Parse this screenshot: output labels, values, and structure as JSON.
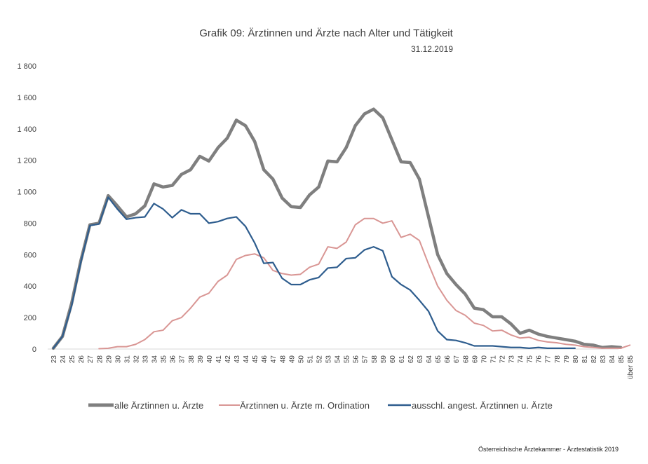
{
  "chart_data": {
    "type": "line",
    "title": "Grafik 09: Ärztinnen und Ärzte nach Alter und Tätigkeit",
    "subtitle": "31.12.2019",
    "source": "Österreichische Ärztekammer - Ärztestatistik 2019",
    "xlabel": "",
    "ylabel": "",
    "ylim": [
      0,
      1800
    ],
    "yticks": [
      0,
      200,
      400,
      600,
      800,
      1000,
      1200,
      1400,
      1600,
      1800
    ],
    "ytick_labels": [
      "0",
      "200",
      "400",
      "600",
      "800",
      "1 000",
      "1 200",
      "1 400",
      "1 600",
      "1 800"
    ],
    "grid": false,
    "legend_position": "bottom",
    "x": [
      "23",
      "24",
      "25",
      "26",
      "27",
      "28",
      "29",
      "30",
      "31",
      "32",
      "33",
      "34",
      "35",
      "36",
      "37",
      "38",
      "39",
      "40",
      "41",
      "42",
      "43",
      "44",
      "45",
      "46",
      "47",
      "48",
      "49",
      "50",
      "51",
      "52",
      "53",
      "54",
      "55",
      "56",
      "57",
      "58",
      "59",
      "60",
      "61",
      "62",
      "63",
      "64",
      "65",
      "66",
      "67",
      "68",
      "69",
      "70",
      "71",
      "72",
      "73",
      "74",
      "75",
      "76",
      "77",
      "78",
      "79",
      "80",
      "81",
      "82",
      "83",
      "84",
      "85",
      "über 85"
    ],
    "series": [
      {
        "name": "alle Ärztinnen u. Ärzte",
        "color": "#7f7f7f",
        "values": [
          5,
          80,
          290,
          560,
          790,
          800,
          975,
          910,
          840,
          860,
          910,
          1050,
          1030,
          1040,
          1110,
          1140,
          1225,
          1195,
          1280,
          1340,
          1455,
          1420,
          1320,
          1140,
          1080,
          960,
          905,
          900,
          980,
          1030,
          1195,
          1190,
          1280,
          1420,
          1495,
          1525,
          1470,
          1330,
          1190,
          1185,
          1080,
          840,
          600,
          480,
          410,
          350,
          260,
          250,
          205,
          205,
          160,
          100,
          120,
          95,
          80,
          70,
          60,
          50,
          30,
          25,
          10,
          15,
          10,
          null
        ]
      },
      {
        "name": "Ärztinnen u. Ärzte m. Ordination",
        "color": "#d99694",
        "values": [
          null,
          null,
          null,
          null,
          null,
          2,
          5,
          15,
          15,
          30,
          60,
          110,
          120,
          180,
          200,
          260,
          330,
          355,
          430,
          470,
          570,
          595,
          605,
          580,
          500,
          480,
          470,
          475,
          520,
          540,
          650,
          640,
          680,
          790,
          830,
          830,
          800,
          815,
          710,
          730,
          690,
          540,
          400,
          310,
          245,
          215,
          165,
          150,
          115,
          120,
          90,
          70,
          75,
          55,
          45,
          40,
          30,
          25,
          15,
          10,
          5,
          5,
          5,
          25
        ]
      },
      {
        "name": "ausschl. angest. Ärztinnen u. Ärzte",
        "color": "#2e5d8e",
        "values": [
          5,
          80,
          275,
          550,
          785,
          795,
          965,
          890,
          825,
          835,
          840,
          925,
          890,
          835,
          885,
          860,
          860,
          800,
          810,
          830,
          840,
          780,
          675,
          545,
          550,
          450,
          410,
          410,
          440,
          455,
          515,
          520,
          575,
          580,
          630,
          650,
          625,
          460,
          410,
          375,
          310,
          240,
          115,
          60,
          55,
          40,
          20,
          20,
          20,
          15,
          10,
          10,
          5,
          10,
          5,
          5,
          5,
          5,
          null,
          null,
          null,
          null,
          null,
          null
        ]
      }
    ]
  }
}
